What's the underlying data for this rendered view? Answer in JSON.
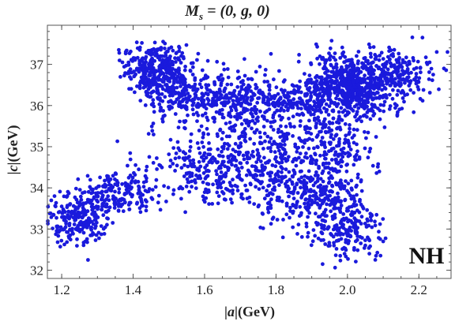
{
  "chart_data": {
    "type": "scatter",
    "title": "M_s = (0, g, 0)",
    "title_parts": {
      "main": "M",
      "sub": "s",
      "rest": " = (0, g, 0)"
    },
    "xlabel": "|a|(GeV)",
    "xlabel_parts": {
      "bar_left": "|",
      "var": "a",
      "bar_right": "|",
      "unit": "(GeV)"
    },
    "ylabel": "|c|(GeV)",
    "ylabel_parts": {
      "bar_left": "|",
      "var": "c",
      "bar_right": "|",
      "unit": "(GeV)"
    },
    "xlim": [
      1.16,
      2.29
    ],
    "ylim": [
      31.8,
      37.95
    ],
    "xticks": [
      1.2,
      1.4,
      1.6,
      1.8,
      2.0,
      2.2
    ],
    "xtick_labels": [
      "1.2",
      "1.4",
      "1.6",
      "1.8",
      "2.0",
      "2.2"
    ],
    "yticks": [
      32,
      33,
      34,
      35,
      36,
      37
    ],
    "ytick_labels": [
      "32",
      "33",
      "34",
      "35",
      "36",
      "37"
    ],
    "annotation": "NH",
    "marker_color": "#1a1adc",
    "grid": false,
    "point_count_approx": 2600,
    "clusters": [
      {
        "x": 1.47,
        "y": 36.85,
        "sx": 0.05,
        "sy": 0.33,
        "n": 380
      },
      {
        "x": 1.57,
        "y": 36.2,
        "sx": 0.08,
        "sy": 0.28,
        "n": 220
      },
      {
        "x": 2.01,
        "y": 36.55,
        "sx": 0.06,
        "sy": 0.35,
        "n": 520
      },
      {
        "x": 2.14,
        "y": 36.75,
        "sx": 0.05,
        "sy": 0.3,
        "n": 200
      },
      {
        "x": 1.83,
        "y": 36.15,
        "sx": 0.13,
        "sy": 0.25,
        "n": 330
      },
      {
        "x": 1.25,
        "y": 33.25,
        "sx": 0.045,
        "sy": 0.3,
        "n": 230
      },
      {
        "x": 1.36,
        "y": 33.85,
        "sx": 0.06,
        "sy": 0.3,
        "n": 180
      },
      {
        "x": 1.6,
        "y": 34.4,
        "sx": 0.1,
        "sy": 0.45,
        "n": 230
      },
      {
        "x": 1.78,
        "y": 35.1,
        "sx": 0.12,
        "sy": 0.75,
        "n": 420
      },
      {
        "x": 1.9,
        "y": 33.9,
        "sx": 0.09,
        "sy": 0.45,
        "n": 320
      },
      {
        "x": 2.0,
        "y": 33.0,
        "sx": 0.05,
        "sy": 0.4,
        "n": 190
      },
      {
        "x": 1.96,
        "y": 35.2,
        "sx": 0.06,
        "sy": 0.6,
        "n": 160
      }
    ],
    "outliers": [
      [
        2.21,
        37.65
      ],
      [
        2.25,
        37.3
      ],
      [
        2.27,
        36.9
      ],
      [
        2.24,
        36.75
      ],
      [
        2.28,
        37.3
      ],
      [
        2.05,
        32.6
      ],
      [
        2.08,
        32.35
      ],
      [
        2.06,
        32.75
      ],
      [
        1.18,
        33.8
      ],
      [
        1.36,
        37.35
      ],
      [
        1.37,
        37.05
      ],
      [
        2.23,
        37.05
      ],
      [
        1.2,
        33.55
      ],
      [
        2.1,
        32.7
      ]
    ]
  }
}
